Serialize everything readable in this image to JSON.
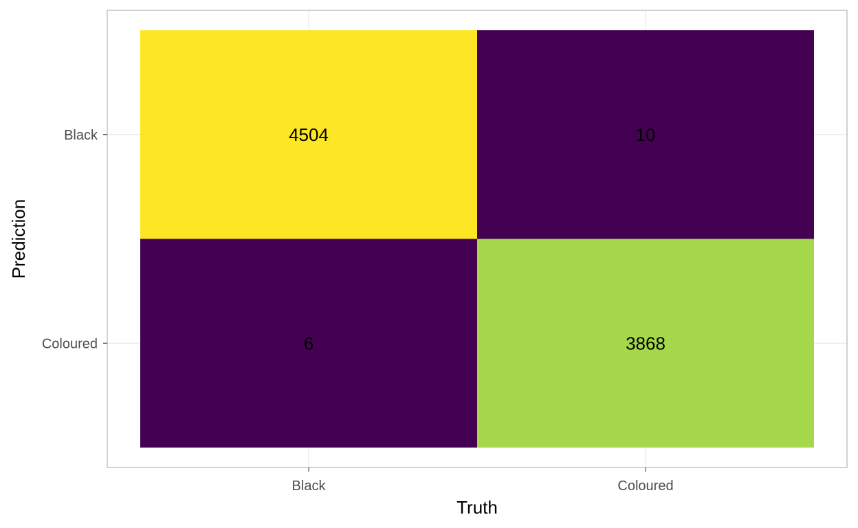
{
  "chart_data": {
    "type": "heatmap",
    "xlabel": "Truth",
    "ylabel": "Prediction",
    "x_categories": [
      "Black",
      "Coloured"
    ],
    "y_categories": [
      "Black",
      "Coloured"
    ],
    "cells": [
      {
        "truth": "Black",
        "prediction": "Black",
        "value": 4504,
        "color": "#fde725"
      },
      {
        "truth": "Coloured",
        "prediction": "Black",
        "value": 10,
        "color": "#440154"
      },
      {
        "truth": "Black",
        "prediction": "Coloured",
        "value": 6,
        "color": "#440154"
      },
      {
        "truth": "Coloured",
        "prediction": "Coloured",
        "value": 3868,
        "color": "#a5d84a"
      }
    ],
    "grid": true,
    "legend": "none"
  },
  "colors": {
    "panel_border": "#b3b3b3",
    "grid": "#e5e5e5",
    "tick_text": "#4d4d4d"
  }
}
